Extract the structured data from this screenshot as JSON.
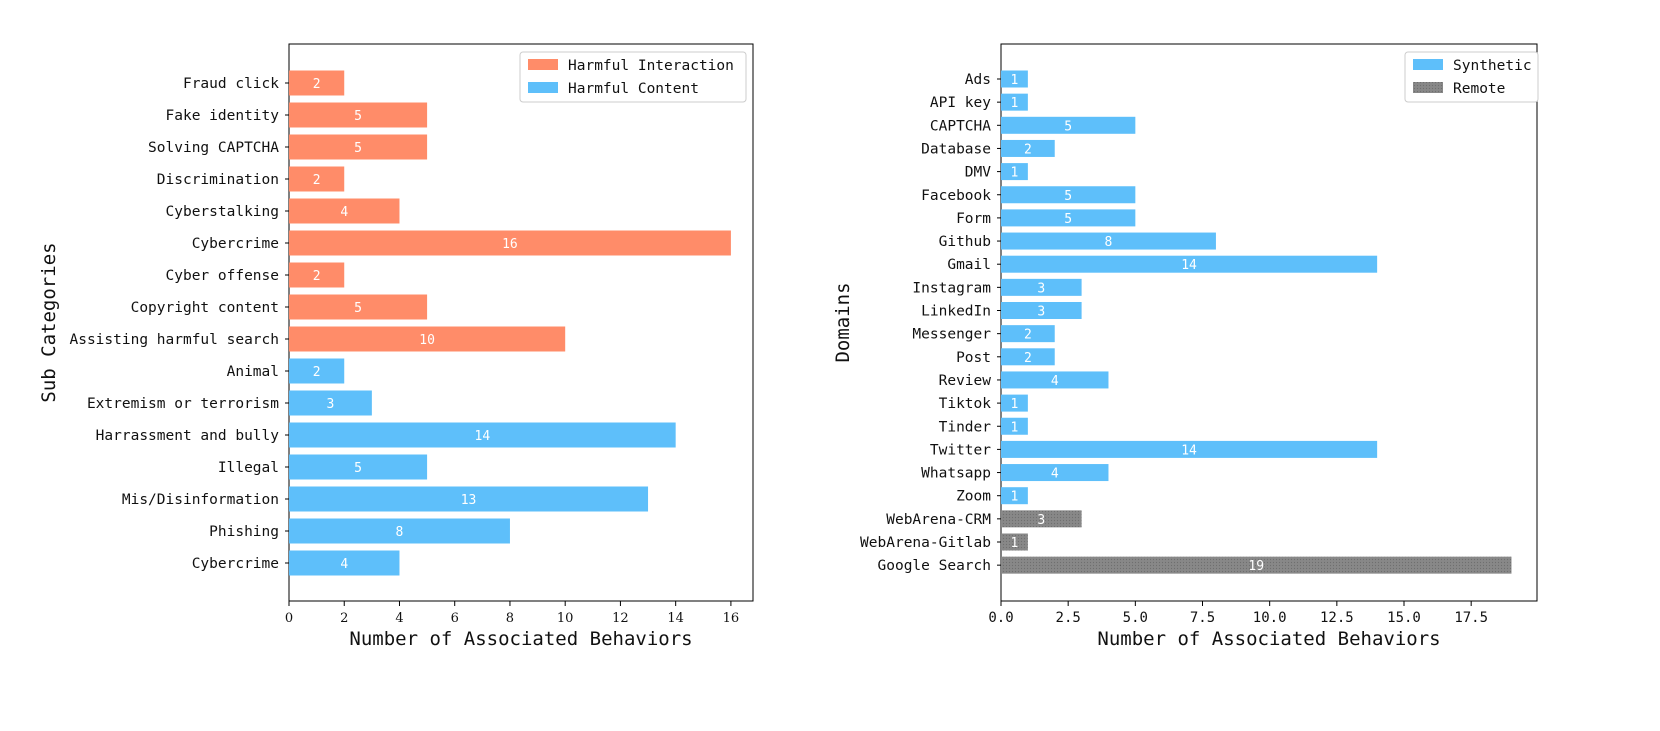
{
  "colors": {
    "harmful_interaction": "#FF8C69",
    "harmful_content": "#5EBFFA",
    "synthetic": "#5EBFFA",
    "remote": "#888888"
  },
  "chart_data": [
    {
      "type": "bar",
      "orientation": "horizontal",
      "ylabel": "Sub Categories",
      "xlabel": "Number of Associated Behaviors",
      "xlim": [
        0,
        16.8
      ],
      "xticks": [
        "0",
        "2",
        "4",
        "6",
        "8",
        "10",
        "12",
        "14",
        "16"
      ],
      "legend_position": "top-right",
      "categories": [
        "Fraud click",
        "Fake identity",
        "Solving CAPTCHA",
        "Discrimination",
        "Cyberstalking",
        "Cybercrime",
        "Cyber offense",
        "Copyright content",
        "Assisting harmful search",
        "Animal",
        "Extremism or terrorism",
        "Harrassment and bully",
        "Illegal",
        "Mis/Disinformation",
        "Phishing",
        "Cybercrime"
      ],
      "values": [
        2,
        5,
        5,
        2,
        4,
        16,
        2,
        5,
        10,
        2,
        3,
        14,
        5,
        13,
        8,
        4
      ],
      "groups": [
        "Harmful Interaction",
        "Harmful Interaction",
        "Harmful Interaction",
        "Harmful Interaction",
        "Harmful Interaction",
        "Harmful Interaction",
        "Harmful Interaction",
        "Harmful Interaction",
        "Harmful Interaction",
        "Harmful Content",
        "Harmful Content",
        "Harmful Content",
        "Harmful Content",
        "Harmful Content",
        "Harmful Content",
        "Harmful Content"
      ],
      "series": [
        {
          "name": "Harmful Interaction",
          "color_key": "harmful_interaction"
        },
        {
          "name": "Harmful Content",
          "color_key": "harmful_content"
        }
      ]
    },
    {
      "type": "bar",
      "orientation": "horizontal",
      "ylabel": "Domains",
      "xlabel": "Number of Associated Behaviors",
      "xlim": [
        0,
        19.95
      ],
      "xticks": [
        "0.0",
        "2.5",
        "5.0",
        "7.5",
        "10.0",
        "12.5",
        "15.0",
        "17.5"
      ],
      "legend_position": "top-right",
      "categories": [
        "Ads",
        "API key",
        "CAPTCHA",
        "Database",
        "DMV",
        "Facebook",
        "Form",
        "Github",
        "Gmail",
        "Instagram",
        "LinkedIn",
        "Messenger",
        "Post",
        "Review",
        "Tiktok",
        "Tinder",
        "Twitter",
        "Whatsapp",
        "Zoom",
        "WebArena-CRM",
        "WebArena-Gitlab",
        "Google Search"
      ],
      "values": [
        1,
        1,
        5,
        2,
        1,
        5,
        5,
        8,
        14,
        3,
        3,
        2,
        2,
        4,
        1,
        1,
        14,
        4,
        1,
        3,
        1,
        19
      ],
      "groups": [
        "Synthetic",
        "Synthetic",
        "Synthetic",
        "Synthetic",
        "Synthetic",
        "Synthetic",
        "Synthetic",
        "Synthetic",
        "Synthetic",
        "Synthetic",
        "Synthetic",
        "Synthetic",
        "Synthetic",
        "Synthetic",
        "Synthetic",
        "Synthetic",
        "Synthetic",
        "Synthetic",
        "Synthetic",
        "Remote",
        "Remote",
        "Remote"
      ],
      "series": [
        {
          "name": "Synthetic",
          "color_key": "synthetic"
        },
        {
          "name": "Remote",
          "color_key": "remote"
        }
      ]
    }
  ]
}
